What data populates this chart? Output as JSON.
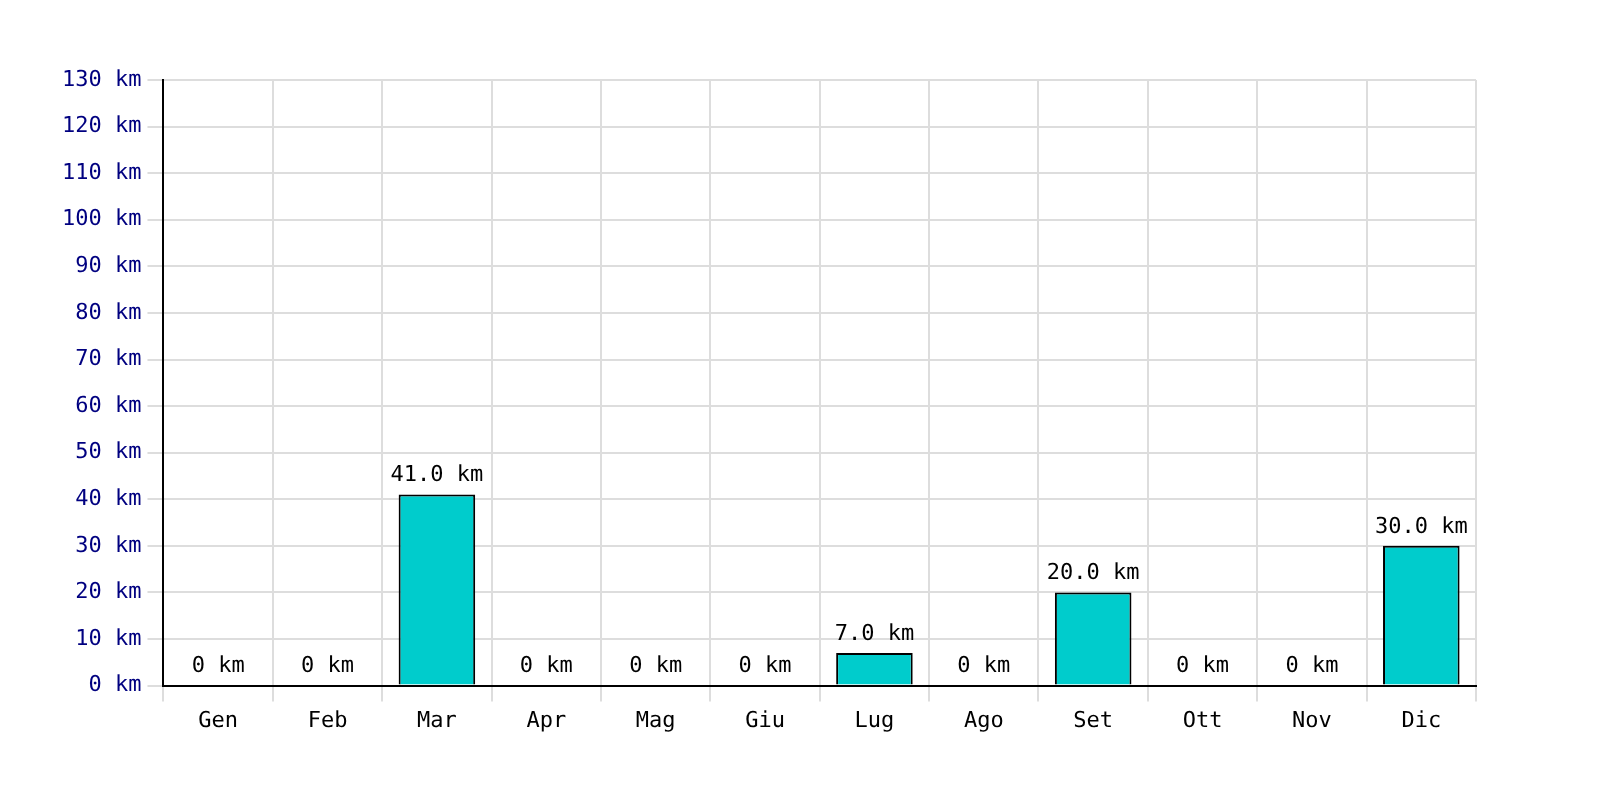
{
  "chart_data": {
    "type": "bar",
    "categories": [
      "Gen",
      "Feb",
      "Mar",
      "Apr",
      "Mag",
      "Giu",
      "Lug",
      "Ago",
      "Set",
      "Ott",
      "Nov",
      "Dic"
    ],
    "values": [
      0,
      0,
      41,
      0,
      0,
      0,
      7,
      0,
      20,
      0,
      0,
      30
    ],
    "value_labels": [
      "0 km",
      "0 km",
      "41.0 km",
      "0 km",
      "0 km",
      "0 km",
      "7.0 km",
      "0 km",
      "20.0 km",
      "0 km",
      "0 km",
      "30.0 km"
    ],
    "color": "#00cccc",
    "ylim": [
      0,
      130
    ],
    "yticks": [
      {
        "value": 0,
        "label": "0 km"
      },
      {
        "value": 10,
        "label": "10 km"
      },
      {
        "value": 20,
        "label": "20 km"
      },
      {
        "value": 30,
        "label": "30 km"
      },
      {
        "value": 40,
        "label": "40 km"
      },
      {
        "value": 50,
        "label": "50 km"
      },
      {
        "value": 60,
        "label": "60 km"
      },
      {
        "value": 70,
        "label": "70 km"
      },
      {
        "value": 80,
        "label": "80 km"
      },
      {
        "value": 90,
        "label": "90 km"
      },
      {
        "value": 100,
        "label": "100 km"
      },
      {
        "value": 110,
        "label": "110 km"
      },
      {
        "value": 120,
        "label": "120 km"
      },
      {
        "value": 130,
        "label": "130 km"
      }
    ],
    "grid": true
  }
}
